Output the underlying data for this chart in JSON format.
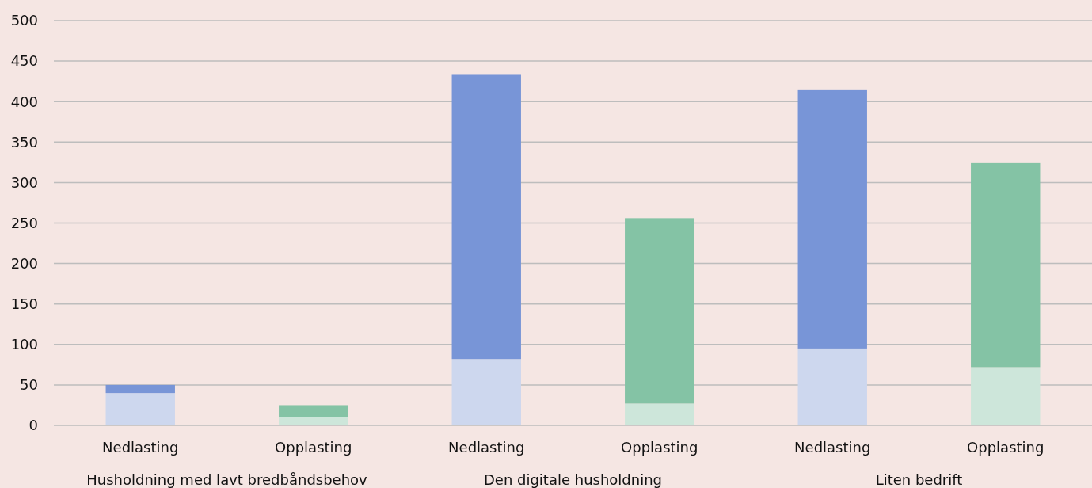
{
  "chart_data": {
    "type": "bar",
    "stacked": true,
    "categories": [
      "Nedlasting",
      "Opplasting",
      "Nedlasting",
      "Opplasting",
      "Nedlasting",
      "Opplasting"
    ],
    "series": [
      {
        "colors": [
          "#cdd7ee",
          "#cde6da",
          "#cdd7ee",
          "#cde6da",
          "#cdd7ee",
          "#cde6da"
        ],
        "values": [
          40,
          10,
          82,
          27,
          95,
          72
        ]
      },
      {
        "colors": [
          "#7895d7",
          "#84c3a5",
          "#7895d7",
          "#84c3a5",
          "#7895d7",
          "#84c3a5"
        ],
        "values": [
          10,
          15,
          351,
          229,
          320,
          252
        ]
      }
    ],
    "annotations": [
      "Husholdning med lavt bredbåndsbehov",
      "Den digitale husholdning",
      "Liten bedrift"
    ],
    "ylim": [
      0,
      500
    ],
    "yticks": [
      0,
      50,
      100,
      150,
      200,
      250,
      300,
      350,
      400,
      450,
      500
    ],
    "grid": "y"
  }
}
